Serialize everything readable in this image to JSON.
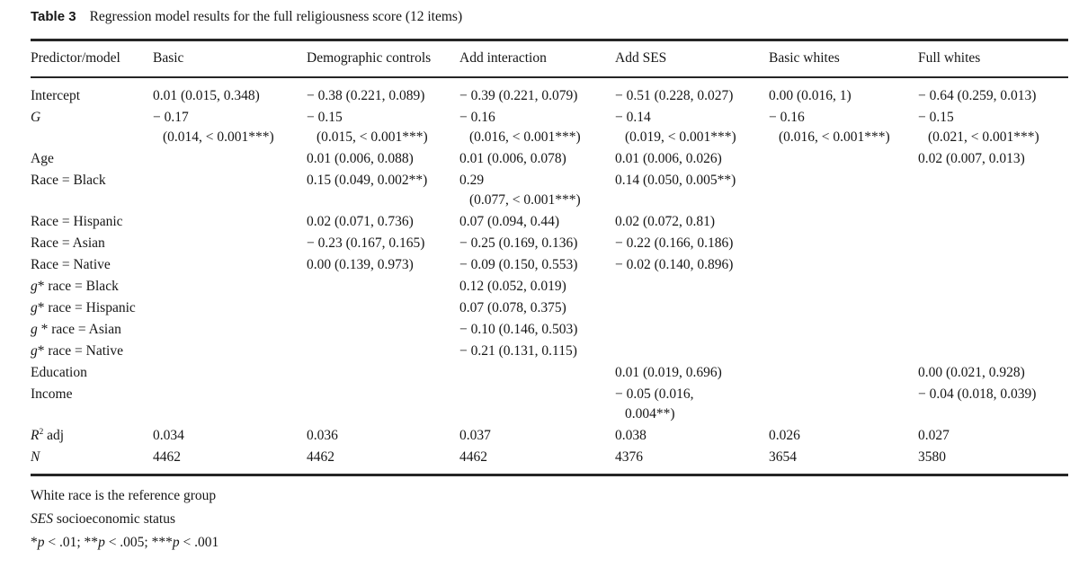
{
  "title": {
    "label": "Table 3",
    "caption": "Regression model results for the full religiousness score (12 items)"
  },
  "columns": [
    "Predictor/model",
    "Basic",
    "Demographic controls",
    "Add interaction",
    "Add SES",
    "Basic whites",
    "Full whites"
  ],
  "rows": [
    {
      "label": [
        {
          "t": "Intercept"
        }
      ],
      "cells": [
        [
          "0.01 (0.015, 0.348)"
        ],
        [
          "− 0.38 (0.221, 0.089)"
        ],
        [
          "− 0.39 (0.221, 0.079)"
        ],
        [
          "− 0.51 (0.228, 0.027)"
        ],
        [
          "0.00 (0.016, 1)"
        ],
        [
          "− 0.64 (0.259, 0.013)"
        ]
      ]
    },
    {
      "label": [
        {
          "t": "G",
          "i": true
        }
      ],
      "cells": [
        [
          "− 0.17",
          "(0.014, < 0.001***)"
        ],
        [
          "− 0.15",
          "(0.015, < 0.001***)"
        ],
        [
          "− 0.16",
          "(0.016, < 0.001***)"
        ],
        [
          "− 0.14",
          "(0.019, < 0.001***)"
        ],
        [
          "− 0.16",
          "(0.016, < 0.001***)"
        ],
        [
          "− 0.15",
          "(0.021, < 0.001***)"
        ]
      ]
    },
    {
      "label": [
        {
          "t": "Age"
        }
      ],
      "cells": [
        [],
        [
          "0.01 (0.006, 0.088)"
        ],
        [
          "0.01 (0.006, 0.078)"
        ],
        [
          "0.01 (0.006, 0.026)"
        ],
        [],
        [
          "0.02 (0.007, 0.013)"
        ]
      ]
    },
    {
      "label": [
        {
          "t": "Race = Black"
        }
      ],
      "cells": [
        [],
        [
          "0.15 (0.049, 0.002**)"
        ],
        [
          "0.29",
          "(0.077, < 0.001***)"
        ],
        [
          "0.14 (0.050, 0.005**)"
        ],
        [],
        []
      ]
    },
    {
      "label": [
        {
          "t": "Race = Hispanic"
        }
      ],
      "cells": [
        [],
        [
          "0.02 (0.071, 0.736)"
        ],
        [
          "0.07 (0.094, 0.44)"
        ],
        [
          "0.02 (0.072, 0.81)"
        ],
        [],
        []
      ]
    },
    {
      "label": [
        {
          "t": "Race = Asian"
        }
      ],
      "cells": [
        [],
        [
          "− 0.23 (0.167, 0.165)"
        ],
        [
          "− 0.25 (0.169, 0.136)"
        ],
        [
          "− 0.22 (0.166, 0.186)"
        ],
        [],
        []
      ]
    },
    {
      "label": [
        {
          "t": "Race = Native"
        }
      ],
      "cells": [
        [],
        [
          "0.00 (0.139, 0.973)"
        ],
        [
          "− 0.09 (0.150, 0.553)"
        ],
        [
          "− 0.02 (0.140, 0.896)"
        ],
        [],
        []
      ]
    },
    {
      "label": [
        {
          "t": "g",
          "i": true
        },
        {
          "t": "* race = Black"
        }
      ],
      "cells": [
        [],
        [],
        [
          "0.12 (0.052, 0.019)"
        ],
        [],
        [],
        []
      ]
    },
    {
      "label": [
        {
          "t": "g",
          "i": true
        },
        {
          "t": "* race = Hispanic"
        }
      ],
      "cells": [
        [],
        [],
        [
          "0.07 (0.078, 0.375)"
        ],
        [],
        [],
        []
      ]
    },
    {
      "label": [
        {
          "t": "g",
          "i": true
        },
        {
          "t": " * race = Asian"
        }
      ],
      "cells": [
        [],
        [],
        [
          "− 0.10 (0.146, 0.503)"
        ],
        [],
        [],
        []
      ]
    },
    {
      "label": [
        {
          "t": "g",
          "i": true
        },
        {
          "t": "* race = Native"
        }
      ],
      "cells": [
        [],
        [],
        [
          "− 0.21 (0.131, 0.115)"
        ],
        [],
        [],
        []
      ]
    },
    {
      "label": [
        {
          "t": "Education"
        }
      ],
      "cells": [
        [],
        [],
        [],
        [
          "0.01 (0.019, 0.696)"
        ],
        [],
        [
          "0.00 (0.021, 0.928)"
        ]
      ]
    },
    {
      "label": [
        {
          "t": "Income"
        }
      ],
      "cells": [
        [],
        [],
        [],
        [
          "− 0.05 (0.016,",
          "0.004**)"
        ],
        [],
        [
          "− 0.04 (0.018, 0.039)"
        ]
      ]
    },
    {
      "label": [
        {
          "t": "R",
          "i": true
        },
        {
          "t": "2",
          "sup": true
        },
        {
          "t": " adj"
        }
      ],
      "cells": [
        [
          "0.034"
        ],
        [
          "0.036"
        ],
        [
          "0.037"
        ],
        [
          "0.038"
        ],
        [
          "0.026"
        ],
        [
          "0.027"
        ]
      ]
    },
    {
      "label": [
        {
          "t": "N",
          "i": true
        }
      ],
      "cells": [
        [
          "4462"
        ],
        [
          "4462"
        ],
        [
          "4462"
        ],
        [
          "4376"
        ],
        [
          "3654"
        ],
        [
          "3580"
        ]
      ]
    }
  ],
  "footnotes": [
    [
      {
        "t": "White race is the reference group"
      }
    ],
    [
      {
        "t": "SES",
        "i": true
      },
      {
        "t": " socioeconomic status"
      }
    ],
    [
      {
        "t": "*"
      },
      {
        "t": "p",
        "i": true
      },
      {
        "t": " < .01; **"
      },
      {
        "t": "p",
        "i": true
      },
      {
        "t": " < .005; ***"
      },
      {
        "t": "p",
        "i": true
      },
      {
        "t": " < .001"
      }
    ]
  ]
}
